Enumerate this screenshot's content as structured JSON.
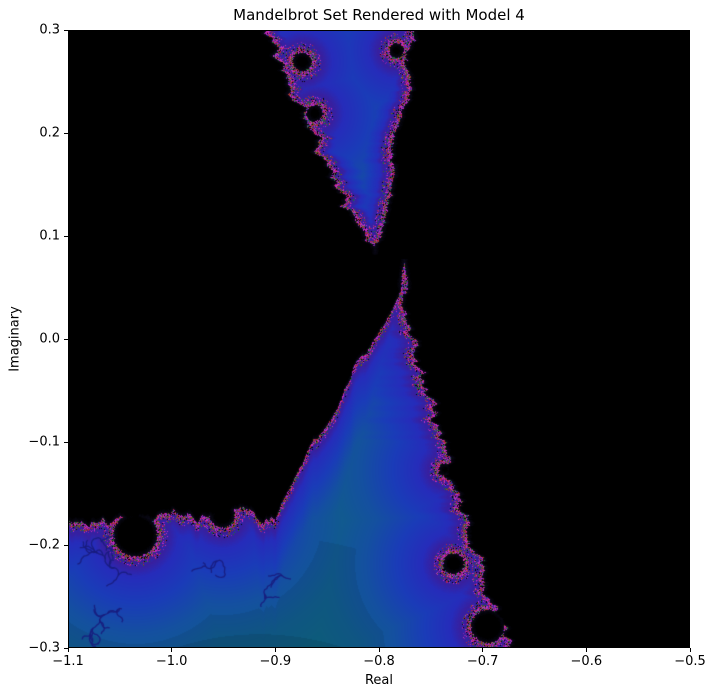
{
  "chart_data": {
    "type": "heatmap",
    "title": "Mandelbrot Set Rendered with Model 4",
    "xlabel": "Real",
    "ylabel": "Imaginary",
    "xlim": [
      -1.1,
      -0.5
    ],
    "ylim": [
      -0.3,
      0.3
    ],
    "x_tick_values": [
      -1.1,
      -1.0,
      -0.9,
      -0.8,
      -0.7,
      -0.6,
      -0.5
    ],
    "x_tick_labels": [
      "−1.1",
      "−1.0",
      "−0.9",
      "−0.8",
      "−0.7",
      "−0.6",
      "−0.5"
    ],
    "y_tick_values": [
      0.3,
      0.2,
      0.1,
      0.0,
      -0.1,
      -0.2,
      -0.3
    ],
    "y_tick_labels": [
      "0.3",
      "0.2",
      "0.1",
      "0.0",
      "−0.1",
      "−0.2",
      "−0.3"
    ],
    "grid": false,
    "legend": "none",
    "description": "Escape-time style rendering of the Mandelbrot set region near the seahorse valley; black = in-set / slow escape, teal-to-blue gradient = faster escape, noisy magenta/green/red speckle at the fractal boundary.",
    "colors": {
      "in_set": "#000000",
      "teal_far": "#0c6a7c",
      "steel_mid": "#105c8c",
      "royal_blue": "#1a3cb8",
      "indigo_edge": "#3e1c92",
      "speckle_palette": [
        [
          "#c22ec2",
          0.22
        ],
        [
          "#8f1fa8",
          0.18
        ],
        [
          "#b2263e",
          0.15
        ],
        [
          "#236e2e",
          0.13
        ],
        [
          "#343295",
          0.14
        ],
        [
          "#8a5018",
          0.08
        ],
        [
          "#000000",
          0.1
        ]
      ]
    },
    "features": {
      "top_funnel": {
        "tip": [
          -0.804,
          0.088
        ],
        "top_left": -0.91,
        "top_right": -0.764,
        "top_imag": 0.3
      },
      "lower_spike": {
        "tip": [
          -0.7755,
          0.057
        ],
        "thin_line_top": 0.075,
        "bottom_right_real": -0.672
      },
      "lower_boundary_imag_left": -0.172,
      "diagonal_from": [
        -0.9,
        -0.172
      ],
      "holes": [
        {
          "x": -1.035,
          "y": -0.19,
          "r": 0.021
        },
        {
          "x": -0.951,
          "y": -0.171,
          "r": 0.012
        },
        {
          "x": -0.736,
          "y": -0.127,
          "r": 0.006
        },
        {
          "x": -0.728,
          "y": -0.218,
          "r": 0.01
        },
        {
          "x": -0.695,
          "y": -0.279,
          "r": 0.016
        },
        {
          "x": -0.874,
          "y": 0.269,
          "r": 0.009
        },
        {
          "x": -0.862,
          "y": 0.219,
          "r": 0.008
        },
        {
          "x": -0.783,
          "y": 0.28,
          "r": 0.007
        }
      ],
      "dendrites": [
        {
          "x": -1.063,
          "y": -0.24,
          "len": 26,
          "seed": 7
        },
        {
          "x": -1.048,
          "y": -0.262,
          "len": 20,
          "seed": 13
        },
        {
          "x": -0.958,
          "y": -0.229,
          "len": 22,
          "seed": 29
        },
        {
          "x": -0.885,
          "y": -0.233,
          "len": 18,
          "seed": 47
        },
        {
          "x": -1.072,
          "y": -0.208,
          "len": 16,
          "seed": 61
        }
      ],
      "contour_arcs": [
        {
          "cx": -0.915,
          "cy": -0.52,
          "r": 0.245,
          "darken": 0.85
        },
        {
          "cx": -0.915,
          "cy": -0.52,
          "r": 0.345,
          "darken": 0.93
        }
      ]
    }
  }
}
